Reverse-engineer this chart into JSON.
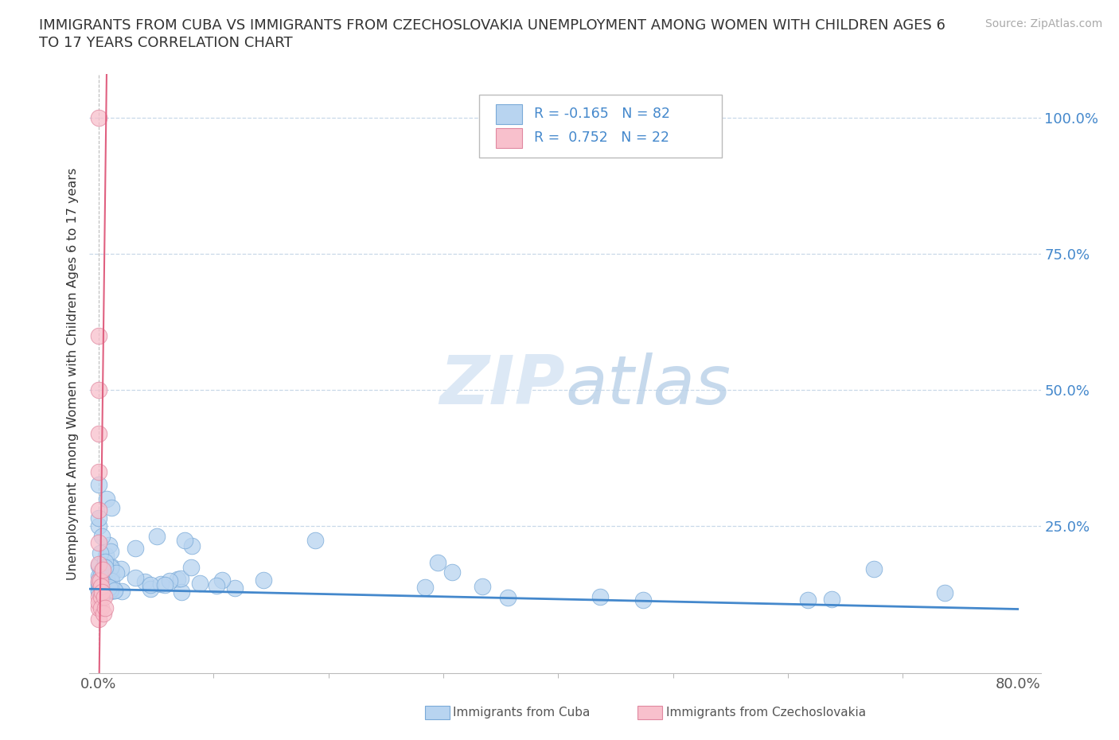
{
  "title_line1": "IMMIGRANTS FROM CUBA VS IMMIGRANTS FROM CZECHOSLOVAKIA UNEMPLOYMENT AMONG WOMEN WITH CHILDREN AGES 6",
  "title_line2": "TO 17 YEARS CORRELATION CHART",
  "source_text": "Source: ZipAtlas.com",
  "ylabel": "Unemployment Among Women with Children Ages 6 to 17 years",
  "xlim": [
    -0.008,
    0.82
  ],
  "ylim": [
    -0.02,
    1.08
  ],
  "grid_color": "#c8d8e8",
  "background_color": "#ffffff",
  "cuba_color": "#b8d4f0",
  "cuba_edge_color": "#7aaad8",
  "czech_color": "#f8c0cc",
  "czech_edge_color": "#e088a0",
  "trend_cuba_color": "#4488cc",
  "trend_czech_color": "#e06080",
  "watermark_color": "#dce8f5",
  "legend_color": "#4488cc"
}
